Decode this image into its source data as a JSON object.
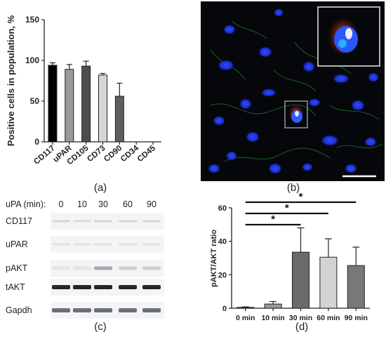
{
  "chart_data": [
    {
      "panel": "(a)",
      "type": "bar",
      "ylabel": "Positive cells in population, %",
      "categories": [
        "CD117",
        "uPAR",
        "CD105",
        "CD73",
        "CD90",
        "CD34",
        "CD45"
      ],
      "values": [
        94,
        89,
        93,
        82,
        56,
        0,
        0
      ],
      "errors": [
        3,
        6,
        6,
        2,
        16,
        0,
        0
      ],
      "bar_colors": [
        "#000000",
        "#9a9a9a",
        "#4d4d4d",
        "#d6d6d6",
        "#5e5e5e",
        "#ffffff",
        "#ffffff"
      ],
      "ylim": [
        0,
        150
      ],
      "yticks": [
        0,
        50,
        100,
        150
      ],
      "grid": false
    },
    {
      "panel": "(d)",
      "type": "bar",
      "ylabel": "pAKT/AKT ratio",
      "categories": [
        "0 min",
        "10 min",
        "30 min",
        "60 min",
        "90 min"
      ],
      "values": [
        0.5,
        2.5,
        33.5,
        30.5,
        25.5
      ],
      "errors": [
        0.3,
        1.5,
        14.5,
        11,
        11
      ],
      "bar_colors": [
        "#2b2b2b",
        "#9a9a9a",
        "#6b6b6b",
        "#d3d3d3",
        "#787878"
      ],
      "ylim": [
        0,
        60
      ],
      "yticks": [
        0,
        20,
        40,
        60
      ],
      "significance": [
        {
          "from": "0 min",
          "to": "30 min",
          "label": "*"
        },
        {
          "from": "0 min",
          "to": "60 min",
          "label": "*"
        },
        {
          "from": "0 min",
          "to": "90 min",
          "label": "*"
        }
      ],
      "grid": false
    }
  ],
  "panel_labels": {
    "a": "(a)",
    "b": "(b)",
    "c": "(c)",
    "d": "(d)"
  },
  "western_blot": {
    "header_label": "uPA (min):",
    "timepoints": [
      "0",
      "10",
      "30",
      "60",
      "90"
    ],
    "rows": [
      "CD117",
      "uPAR",
      "pAKT",
      "tAKT",
      "Gapdh"
    ]
  }
}
